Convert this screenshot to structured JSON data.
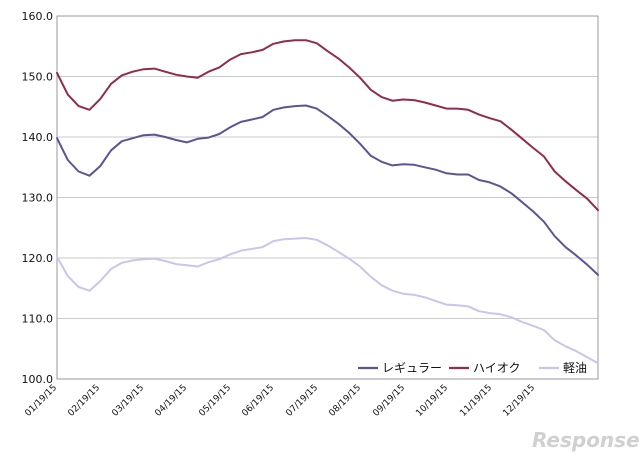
{
  "chart_data": {
    "type": "line",
    "title": "",
    "xlabel": "",
    "ylabel": "",
    "ylim": [
      100,
      160
    ],
    "yticks": [
      "100.0",
      "110.0",
      "120.0",
      "130.0",
      "140.0",
      "150.0",
      "160.0"
    ],
    "ytick_values": [
      100,
      110,
      120,
      130,
      140,
      150,
      160
    ],
    "x_tick_labels": [
      "01/19/15",
      "02/19/15",
      "03/19/15",
      "04/19/15",
      "05/19/15",
      "06/19/15",
      "07/19/15",
      "08/19/15",
      "09/19/15",
      "10/19/15",
      "11/19/15",
      "12/19/15"
    ],
    "n_points": 51,
    "grid": true,
    "legend_position": "bottom-right",
    "series": [
      {
        "name": "レギュラー",
        "color": "#5a5695",
        "values": [
          139.8,
          136.2,
          134.3,
          133.6,
          135.2,
          137.8,
          139.3,
          139.8,
          140.3,
          140.4,
          140.0,
          139.5,
          139.1,
          139.7,
          139.9,
          140.5,
          141.6,
          142.5,
          142.9,
          143.3,
          144.5,
          144.9,
          145.1,
          145.2,
          144.7,
          143.5,
          142.2,
          140.7,
          138.9,
          136.9,
          135.9,
          135.3,
          135.5,
          135.4,
          135.0,
          134.6,
          134.0,
          133.8,
          133.8,
          132.9,
          132.5,
          131.8,
          130.7,
          129.2,
          127.7,
          126.0,
          123.6,
          121.8,
          120.4,
          118.9,
          117.2
        ]
      },
      {
        "name": "ハイオク",
        "color": "#922b4e",
        "values": [
          150.6,
          147.0,
          145.1,
          144.5,
          146.3,
          148.8,
          150.2,
          150.8,
          151.2,
          151.3,
          150.8,
          150.3,
          150.0,
          149.8,
          150.8,
          151.5,
          152.8,
          153.7,
          154.0,
          154.4,
          155.4,
          155.8,
          156.0,
          156.0,
          155.5,
          154.2,
          153.0,
          151.5,
          149.8,
          147.8,
          146.6,
          146.0,
          146.2,
          146.1,
          145.7,
          145.2,
          144.7,
          144.7,
          144.5,
          143.7,
          143.1,
          142.6,
          141.2,
          139.7,
          138.2,
          136.8,
          134.3,
          132.7,
          131.2,
          129.8,
          127.9
        ]
      },
      {
        "name": "軽油",
        "color": "#c8c6ea",
        "values": [
          120.2,
          117.0,
          115.2,
          114.6,
          116.2,
          118.2,
          119.2,
          119.6,
          119.8,
          119.9,
          119.5,
          119.0,
          118.8,
          118.6,
          119.3,
          119.8,
          120.6,
          121.2,
          121.5,
          121.8,
          122.8,
          123.1,
          123.2,
          123.3,
          123.0,
          122.1,
          121.0,
          119.9,
          118.6,
          116.9,
          115.5,
          114.6,
          114.1,
          113.9,
          113.5,
          112.9,
          112.3,
          112.2,
          112.0,
          111.2,
          110.9,
          110.7,
          110.2,
          109.4,
          108.8,
          108.1,
          106.4,
          105.4,
          104.6,
          103.6,
          102.6
        ]
      }
    ]
  },
  "watermark": "Response."
}
